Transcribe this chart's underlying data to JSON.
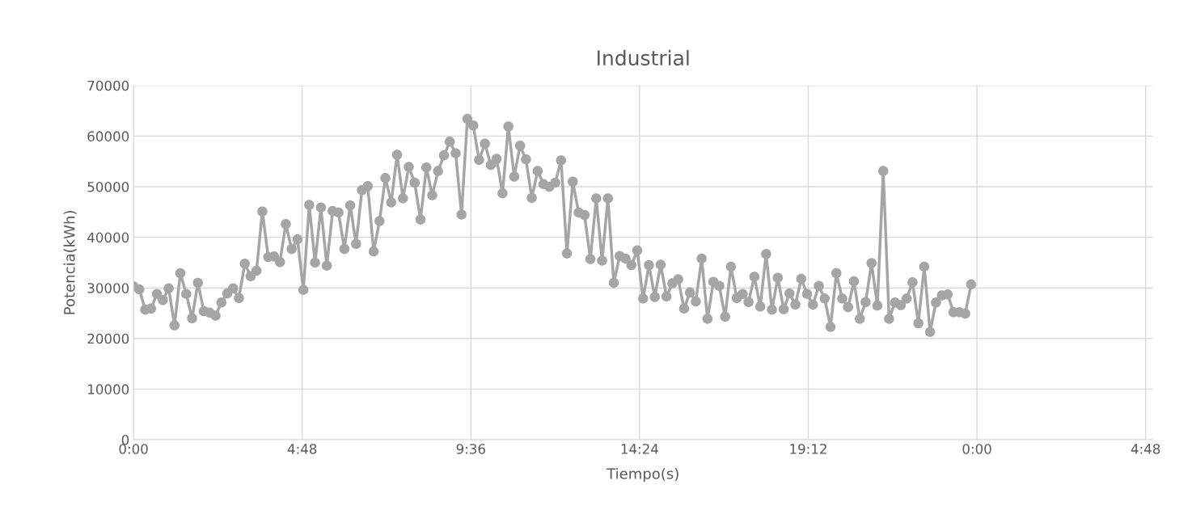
{
  "chart_data": {
    "type": "line",
    "title": "Industrial",
    "xlabel": "Tiempo(s)",
    "ylabel": "Potencia(kWh)",
    "x": [
      "2000-01-01T00:00",
      "2000-01-01T00:10",
      "2000-01-01T00:20",
      "2000-01-01T00:30",
      "2000-01-01T00:40",
      "2000-01-01T00:50",
      "2000-01-01T01:00",
      "2000-01-01T01:10",
      "2000-01-01T01:20",
      "2000-01-01T01:30",
      "2000-01-01T01:40",
      "2000-01-01T01:50",
      "2000-01-01T02:00",
      "2000-01-01T02:10",
      "2000-01-01T02:20",
      "2000-01-01T02:30",
      "2000-01-01T02:40",
      "2000-01-01T02:50",
      "2000-01-01T03:00",
      "2000-01-01T03:10",
      "2000-01-01T03:20",
      "2000-01-01T03:30",
      "2000-01-01T03:40",
      "2000-01-01T03:50",
      "2000-01-01T04:00",
      "2000-01-01T04:10",
      "2000-01-01T04:20",
      "2000-01-01T04:30",
      "2000-01-01T04:40",
      "2000-01-01T04:50",
      "2000-01-01T05:00",
      "2000-01-01T05:10",
      "2000-01-01T05:20",
      "2000-01-01T05:30",
      "2000-01-01T05:40",
      "2000-01-01T05:50",
      "2000-01-01T06:00",
      "2000-01-01T06:10",
      "2000-01-01T06:20",
      "2000-01-01T06:30",
      "2000-01-01T06:40",
      "2000-01-01T06:50",
      "2000-01-01T07:00",
      "2000-01-01T07:10",
      "2000-01-01T07:20",
      "2000-01-01T07:30",
      "2000-01-01T07:40",
      "2000-01-01T07:50",
      "2000-01-01T08:00",
      "2000-01-01T08:10",
      "2000-01-01T08:20",
      "2000-01-01T08:30",
      "2000-01-01T08:40",
      "2000-01-01T08:50",
      "2000-01-01T09:00",
      "2000-01-01T09:10",
      "2000-01-01T09:20",
      "2000-01-01T09:30",
      "2000-01-01T09:40",
      "2000-01-01T09:50",
      "2000-01-01T10:00",
      "2000-01-01T10:10",
      "2000-01-01T10:20",
      "2000-01-01T10:30",
      "2000-01-01T10:40",
      "2000-01-01T10:50",
      "2000-01-01T11:00",
      "2000-01-01T11:10",
      "2000-01-01T11:20",
      "2000-01-01T11:30",
      "2000-01-01T11:40",
      "2000-01-01T11:50",
      "2000-01-01T12:00",
      "2000-01-01T12:10",
      "2000-01-01T12:20",
      "2000-01-01T12:30",
      "2000-01-01T12:40",
      "2000-01-01T12:50",
      "2000-01-01T13:00",
      "2000-01-01T13:10",
      "2000-01-01T13:20",
      "2000-01-01T13:30",
      "2000-01-01T13:40",
      "2000-01-01T13:50",
      "2000-01-01T14:00",
      "2000-01-01T14:10",
      "2000-01-01T14:20",
      "2000-01-01T14:30",
      "2000-01-01T14:40",
      "2000-01-01T14:50",
      "2000-01-01T15:00",
      "2000-01-01T15:10",
      "2000-01-01T15:20",
      "2000-01-01T15:30",
      "2000-01-01T15:40",
      "2000-01-01T15:50",
      "2000-01-01T16:00",
      "2000-01-01T16:10",
      "2000-01-01T16:20",
      "2000-01-01T16:30",
      "2000-01-01T16:40",
      "2000-01-01T16:50",
      "2000-01-01T17:00",
      "2000-01-01T17:10",
      "2000-01-01T17:20",
      "2000-01-01T17:30",
      "2000-01-01T17:40",
      "2000-01-01T17:50",
      "2000-01-01T18:00",
      "2000-01-01T18:10",
      "2000-01-01T18:20",
      "2000-01-01T18:30",
      "2000-01-01T18:40",
      "2000-01-01T18:50",
      "2000-01-01T19:00",
      "2000-01-01T19:10",
      "2000-01-01T19:20",
      "2000-01-01T19:30",
      "2000-01-01T19:40",
      "2000-01-01T19:50",
      "2000-01-01T20:00",
      "2000-01-01T20:10",
      "2000-01-01T20:20",
      "2000-01-01T20:30",
      "2000-01-01T20:40",
      "2000-01-01T20:50",
      "2000-01-01T21:00",
      "2000-01-01T21:10",
      "2000-01-01T21:20",
      "2000-01-01T21:30",
      "2000-01-01T21:40",
      "2000-01-01T21:50",
      "2000-01-01T22:00",
      "2000-01-01T22:10",
      "2000-01-01T22:20",
      "2000-01-01T22:30",
      "2000-01-01T22:40",
      "2000-01-01T22:50",
      "2000-01-01T23:00",
      "2000-01-01T23:10",
      "2000-01-01T23:20",
      "2000-01-01T23:30",
      "2000-01-01T23:40",
      "2000-01-01T23:50"
    ],
    "series": [
      {
        "color": "#a5a5a5",
        "values": [
          30300,
          29700,
          25700,
          25900,
          28800,
          27600,
          29900,
          22600,
          32900,
          28800,
          24000,
          31000,
          25400,
          25100,
          24500,
          27100,
          28900,
          29900,
          28000,
          34800,
          32300,
          33400,
          45100,
          36100,
          36200,
          35100,
          42600,
          37700,
          39600,
          29600,
          46400,
          35000,
          45900,
          34400,
          45200,
          44900,
          37700,
          46300,
          38700,
          49300,
          50100,
          37200,
          43200,
          51700,
          46900,
          56300,
          47700,
          53900,
          50800,
          43500,
          53800,
          48300,
          53100,
          56200,
          58900,
          56600,
          44500,
          63400,
          62100,
          55300,
          58500,
          54300,
          55500,
          48700,
          61900,
          52000,
          58100,
          55400,
          47800,
          53100,
          50500,
          50000,
          50800,
          55200,
          36800,
          51000,
          44900,
          44400,
          35700,
          47700,
          35400,
          47700,
          31000,
          36300,
          35800,
          34500,
          37400,
          27900,
          34500,
          28200,
          34600,
          28300,
          30900,
          31700,
          25900,
          29100,
          27300,
          35800,
          23900,
          31200,
          30400,
          24300,
          34200,
          28000,
          28800,
          27200,
          32200,
          26300,
          36700,
          25700,
          32000,
          25800,
          28900,
          26700,
          31800,
          28800,
          26700,
          30400,
          27900,
          22300,
          32900,
          27900,
          26200,
          31300,
          23900,
          27200,
          34900,
          26500,
          53100,
          23900,
          27100,
          26600,
          27900,
          31100,
          23000,
          34200,
          21300,
          27100,
          28500,
          28700,
          25200,
          25200,
          24900,
          30700
        ]
      }
    ],
    "xlim": [
      "2000-01-01T00:00",
      "2000-01-02T05:00"
    ],
    "xticks": [
      {
        "value": "2000-01-01T00:00",
        "label": "0:00"
      },
      {
        "value": "2000-01-01T04:48",
        "label": "4:48"
      },
      {
        "value": "2000-01-01T09:36",
        "label": "9:36"
      },
      {
        "value": "2000-01-01T14:24",
        "label": "14:24"
      },
      {
        "value": "2000-01-01T19:12",
        "label": "19:12"
      },
      {
        "value": "2000-01-02T00:00",
        "label": "0:00"
      },
      {
        "value": "2000-01-02T04:48",
        "label": "4:48"
      }
    ],
    "ylim": [
      0,
      70000
    ],
    "yticks": [
      0,
      10000,
      20000,
      30000,
      40000,
      50000,
      60000,
      70000
    ],
    "grid": true,
    "marker": "circle",
    "line_style": "solid"
  }
}
